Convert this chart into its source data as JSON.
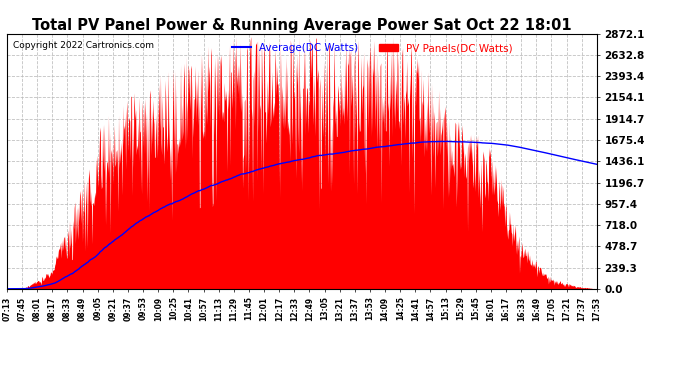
{
  "title": "Total PV Panel Power & Running Average Power Sat Oct 22 18:01",
  "copyright": "Copyright 2022 Cartronics.com",
  "legend_avg": "Average(DC Watts)",
  "legend_pv": "PV Panels(DC Watts)",
  "avg_color": "blue",
  "pv_color": "red",
  "background_color": "#ffffff",
  "grid_color": "#bbbbbb",
  "yticks": [
    0.0,
    239.3,
    478.7,
    718.0,
    957.4,
    1196.7,
    1436.1,
    1675.4,
    1914.7,
    2154.1,
    2393.4,
    2632.8,
    2872.1
  ],
  "ymax": 2872.1,
  "xtick_labels": [
    "07:13",
    "07:45",
    "08:01",
    "08:17",
    "08:33",
    "08:49",
    "09:05",
    "09:21",
    "09:37",
    "09:53",
    "10:09",
    "10:25",
    "10:41",
    "10:57",
    "11:13",
    "11:29",
    "11:45",
    "12:01",
    "12:17",
    "12:33",
    "12:49",
    "13:05",
    "13:21",
    "13:37",
    "13:53",
    "14:09",
    "14:25",
    "14:41",
    "14:57",
    "15:13",
    "15:29",
    "15:45",
    "16:01",
    "16:17",
    "16:33",
    "16:49",
    "17:05",
    "17:21",
    "17:37",
    "17:53"
  ]
}
